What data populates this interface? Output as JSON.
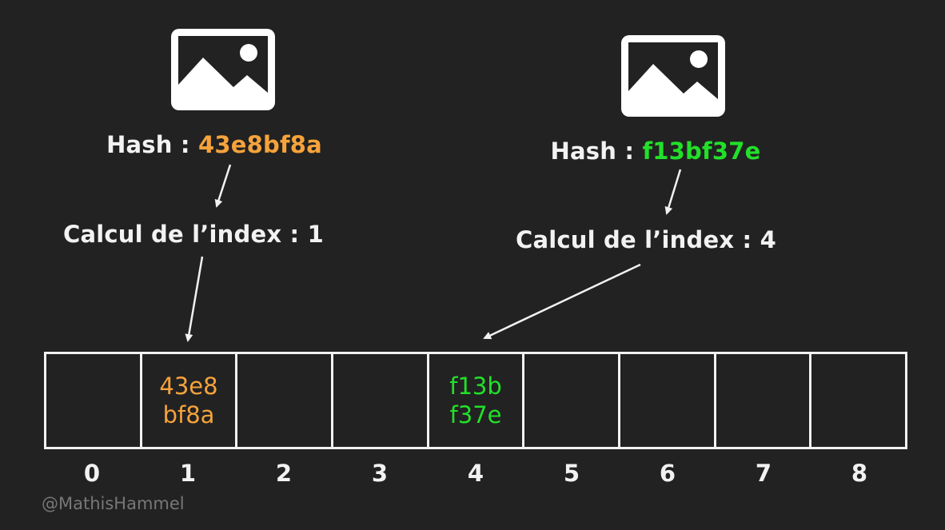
{
  "colors": {
    "background": "#222222",
    "foreground": "#f2f2f2",
    "orange": "#f6a33c",
    "green": "#22e02a",
    "watermark": "#777777"
  },
  "left": {
    "icon": "image-icon",
    "hash_prefix": "Hash : ",
    "hash_value": "43e8bf8a",
    "index_label": "Calcul de l’index : 1"
  },
  "right": {
    "icon": "image-icon",
    "hash_prefix": "Hash : ",
    "hash_value": "f13bf37e",
    "index_label": "Calcul de l’index : 4"
  },
  "table": {
    "cells": [
      {
        "line1": "",
        "line2": ""
      },
      {
        "line1": "43e8",
        "line2": "bf8a"
      },
      {
        "line1": "",
        "line2": ""
      },
      {
        "line1": "",
        "line2": ""
      },
      {
        "line1": "f13b",
        "line2": "f37e"
      },
      {
        "line1": "",
        "line2": ""
      },
      {
        "line1": "",
        "line2": ""
      },
      {
        "line1": "",
        "line2": ""
      },
      {
        "line1": "",
        "line2": ""
      }
    ],
    "indices": [
      "0",
      "1",
      "2",
      "3",
      "4",
      "5",
      "6",
      "7",
      "8"
    ]
  },
  "watermark": "@MathisHammel"
}
